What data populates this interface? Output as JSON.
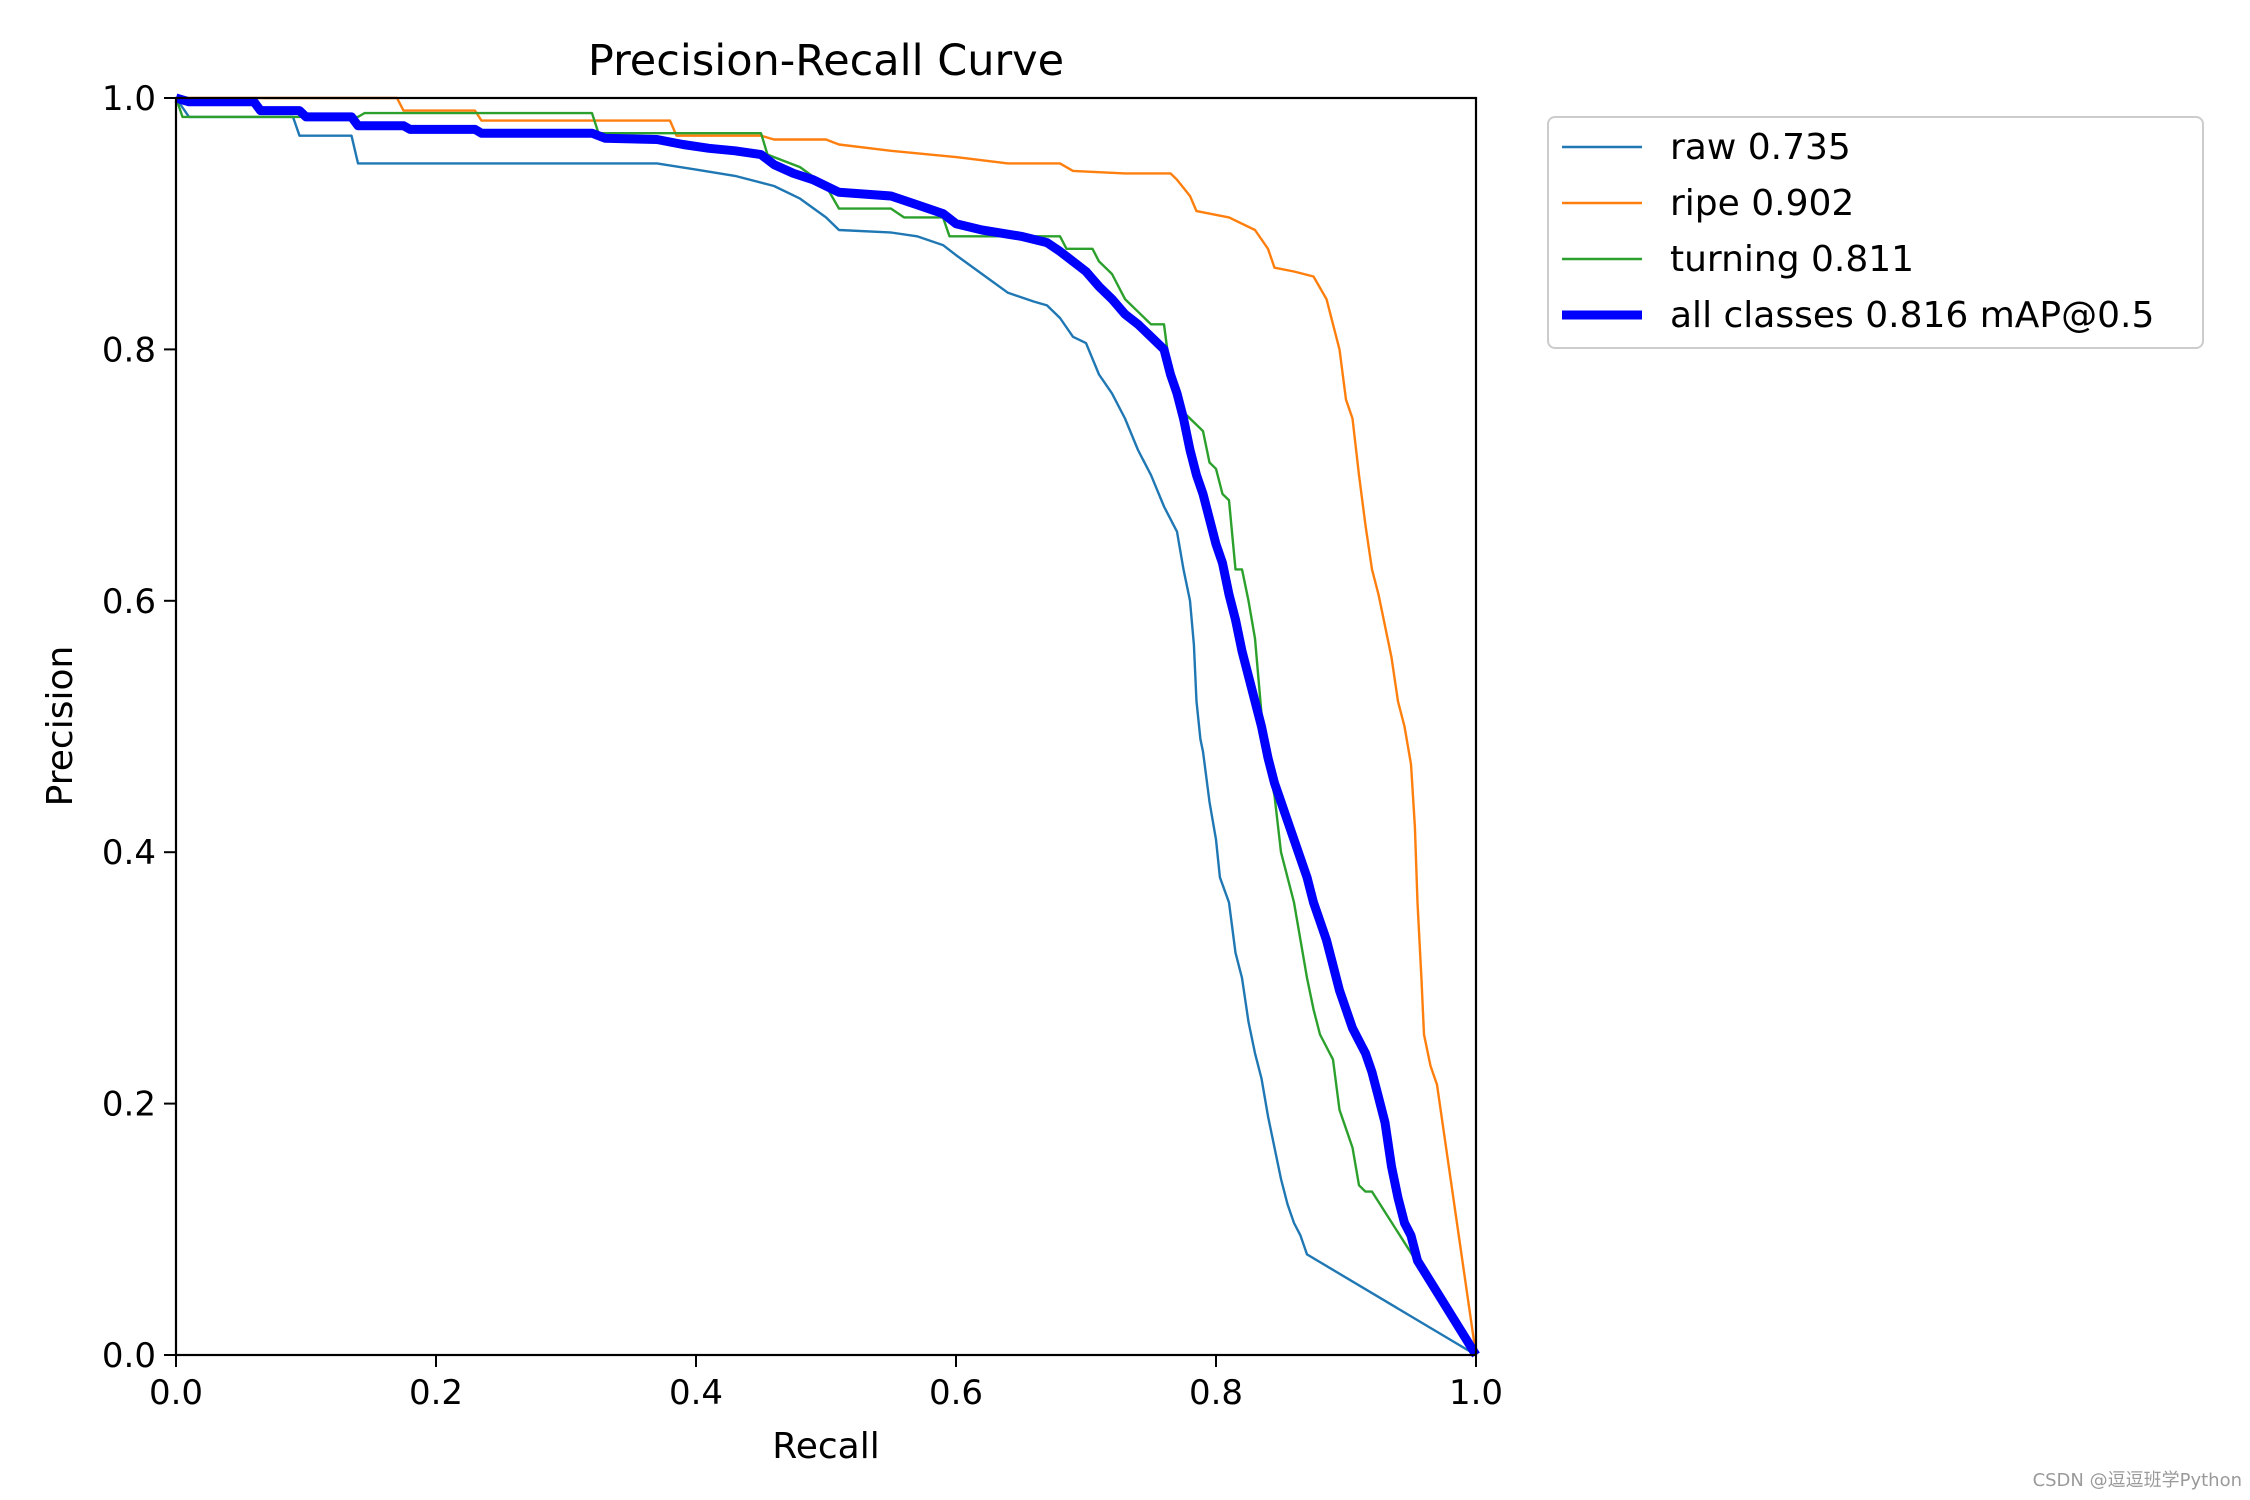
{
  "watermark": "CSDN @逗逗班学Python",
  "chart_data": {
    "type": "line",
    "title": "Precision-Recall Curve",
    "xlabel": "Recall",
    "ylabel": "Precision",
    "xlim": [
      0,
      1
    ],
    "ylim": [
      0,
      1
    ],
    "xticks": [
      "0.0",
      "0.2",
      "0.4",
      "0.6",
      "0.8",
      "1.0"
    ],
    "yticks": [
      "0.0",
      "0.2",
      "0.4",
      "0.6",
      "0.8",
      "1.0"
    ],
    "grid": false,
    "legend_position": "outside-top-right",
    "series": [
      {
        "name": "raw 0.735",
        "color": "#1f77b4",
        "linewidth": "thin",
        "points": [
          [
            0,
            1.0
          ],
          [
            0.01,
            0.985
          ],
          [
            0.09,
            0.985
          ],
          [
            0.095,
            0.97
          ],
          [
            0.135,
            0.97
          ],
          [
            0.14,
            0.948
          ],
          [
            0.37,
            0.948
          ],
          [
            0.4,
            0.943
          ],
          [
            0.43,
            0.938
          ],
          [
            0.46,
            0.93
          ],
          [
            0.48,
            0.92
          ],
          [
            0.5,
            0.905
          ],
          [
            0.51,
            0.895
          ],
          [
            0.55,
            0.893
          ],
          [
            0.57,
            0.89
          ],
          [
            0.59,
            0.883
          ],
          [
            0.6,
            0.875
          ],
          [
            0.62,
            0.86
          ],
          [
            0.64,
            0.845
          ],
          [
            0.66,
            0.838
          ],
          [
            0.67,
            0.835
          ],
          [
            0.68,
            0.825
          ],
          [
            0.69,
            0.81
          ],
          [
            0.7,
            0.805
          ],
          [
            0.71,
            0.78
          ],
          [
            0.72,
            0.765
          ],
          [
            0.73,
            0.745
          ],
          [
            0.74,
            0.72
          ],
          [
            0.75,
            0.7
          ],
          [
            0.76,
            0.675
          ],
          [
            0.77,
            0.655
          ],
          [
            0.775,
            0.625
          ],
          [
            0.78,
            0.6
          ],
          [
            0.783,
            0.565
          ],
          [
            0.785,
            0.52
          ],
          [
            0.788,
            0.49
          ],
          [
            0.79,
            0.48
          ],
          [
            0.795,
            0.44
          ],
          [
            0.8,
            0.41
          ],
          [
            0.803,
            0.38
          ],
          [
            0.81,
            0.36
          ],
          [
            0.815,
            0.32
          ],
          [
            0.82,
            0.3
          ],
          [
            0.825,
            0.265
          ],
          [
            0.83,
            0.24
          ],
          [
            0.835,
            0.22
          ],
          [
            0.84,
            0.19
          ],
          [
            0.845,
            0.165
          ],
          [
            0.85,
            0.14
          ],
          [
            0.855,
            0.12
          ],
          [
            0.86,
            0.105
          ],
          [
            0.865,
            0.095
          ],
          [
            0.87,
            0.08
          ],
          [
            1.0,
            0.0
          ]
        ]
      },
      {
        "name": "ripe 0.902",
        "color": "#ff7f0e",
        "linewidth": "thin",
        "points": [
          [
            0,
            1.0
          ],
          [
            0.17,
            1.0
          ],
          [
            0.175,
            0.99
          ],
          [
            0.23,
            0.99
          ],
          [
            0.235,
            0.982
          ],
          [
            0.38,
            0.982
          ],
          [
            0.385,
            0.97
          ],
          [
            0.45,
            0.97
          ],
          [
            0.46,
            0.967
          ],
          [
            0.5,
            0.967
          ],
          [
            0.51,
            0.963
          ],
          [
            0.55,
            0.958
          ],
          [
            0.6,
            0.953
          ],
          [
            0.64,
            0.948
          ],
          [
            0.68,
            0.948
          ],
          [
            0.69,
            0.942
          ],
          [
            0.73,
            0.94
          ],
          [
            0.765,
            0.94
          ],
          [
            0.77,
            0.935
          ],
          [
            0.78,
            0.922
          ],
          [
            0.785,
            0.91
          ],
          [
            0.81,
            0.905
          ],
          [
            0.83,
            0.895
          ],
          [
            0.84,
            0.88
          ],
          [
            0.845,
            0.865
          ],
          [
            0.86,
            0.862
          ],
          [
            0.875,
            0.858
          ],
          [
            0.885,
            0.84
          ],
          [
            0.89,
            0.82
          ],
          [
            0.895,
            0.8
          ],
          [
            0.9,
            0.76
          ],
          [
            0.905,
            0.745
          ],
          [
            0.91,
            0.7
          ],
          [
            0.915,
            0.66
          ],
          [
            0.92,
            0.625
          ],
          [
            0.925,
            0.605
          ],
          [
            0.93,
            0.58
          ],
          [
            0.935,
            0.555
          ],
          [
            0.94,
            0.52
          ],
          [
            0.945,
            0.5
          ],
          [
            0.95,
            0.47
          ],
          [
            0.953,
            0.42
          ],
          [
            0.955,
            0.36
          ],
          [
            0.958,
            0.3
          ],
          [
            0.96,
            0.255
          ],
          [
            0.965,
            0.23
          ],
          [
            0.97,
            0.215
          ],
          [
            1.0,
            0.0
          ]
        ]
      },
      {
        "name": "turning 0.811",
        "color": "#2ca02c",
        "linewidth": "thin",
        "points": [
          [
            0,
            1.0
          ],
          [
            0.005,
            0.985
          ],
          [
            0.14,
            0.985
          ],
          [
            0.145,
            0.988
          ],
          [
            0.32,
            0.988
          ],
          [
            0.325,
            0.972
          ],
          [
            0.45,
            0.972
          ],
          [
            0.455,
            0.955
          ],
          [
            0.48,
            0.945
          ],
          [
            0.5,
            0.93
          ],
          [
            0.51,
            0.912
          ],
          [
            0.55,
            0.912
          ],
          [
            0.56,
            0.905
          ],
          [
            0.59,
            0.905
          ],
          [
            0.595,
            0.89
          ],
          [
            0.68,
            0.89
          ],
          [
            0.685,
            0.88
          ],
          [
            0.705,
            0.88
          ],
          [
            0.71,
            0.87
          ],
          [
            0.72,
            0.86
          ],
          [
            0.73,
            0.84
          ],
          [
            0.74,
            0.83
          ],
          [
            0.75,
            0.82
          ],
          [
            0.76,
            0.82
          ],
          [
            0.765,
            0.78
          ],
          [
            0.775,
            0.75
          ],
          [
            0.785,
            0.74
          ],
          [
            0.79,
            0.735
          ],
          [
            0.795,
            0.71
          ],
          [
            0.8,
            0.705
          ],
          [
            0.805,
            0.685
          ],
          [
            0.81,
            0.68
          ],
          [
            0.815,
            0.625
          ],
          [
            0.82,
            0.625
          ],
          [
            0.825,
            0.6
          ],
          [
            0.83,
            0.57
          ],
          [
            0.835,
            0.51
          ],
          [
            0.84,
            0.47
          ],
          [
            0.845,
            0.445
          ],
          [
            0.85,
            0.4
          ],
          [
            0.855,
            0.38
          ],
          [
            0.86,
            0.36
          ],
          [
            0.865,
            0.33
          ],
          [
            0.87,
            0.3
          ],
          [
            0.875,
            0.275
          ],
          [
            0.88,
            0.255
          ],
          [
            0.885,
            0.245
          ],
          [
            0.89,
            0.235
          ],
          [
            0.895,
            0.195
          ],
          [
            0.9,
            0.18
          ],
          [
            0.905,
            0.165
          ],
          [
            0.91,
            0.135
          ],
          [
            0.915,
            0.13
          ],
          [
            0.92,
            0.13
          ],
          [
            1.0,
            0.0
          ]
        ]
      },
      {
        "name": "all classes 0.816 mAP@0.5",
        "color": "#0000ff",
        "linewidth": "thick",
        "points": [
          [
            0,
            1.0
          ],
          [
            0.01,
            0.997
          ],
          [
            0.06,
            0.997
          ],
          [
            0.065,
            0.99
          ],
          [
            0.095,
            0.99
          ],
          [
            0.1,
            0.985
          ],
          [
            0.135,
            0.985
          ],
          [
            0.14,
            0.978
          ],
          [
            0.175,
            0.978
          ],
          [
            0.18,
            0.975
          ],
          [
            0.23,
            0.975
          ],
          [
            0.235,
            0.972
          ],
          [
            0.32,
            0.972
          ],
          [
            0.33,
            0.968
          ],
          [
            0.37,
            0.967
          ],
          [
            0.39,
            0.963
          ],
          [
            0.41,
            0.96
          ],
          [
            0.43,
            0.958
          ],
          [
            0.45,
            0.955
          ],
          [
            0.46,
            0.947
          ],
          [
            0.475,
            0.94
          ],
          [
            0.49,
            0.935
          ],
          [
            0.51,
            0.925
          ],
          [
            0.55,
            0.922
          ],
          [
            0.57,
            0.915
          ],
          [
            0.59,
            0.908
          ],
          [
            0.6,
            0.9
          ],
          [
            0.62,
            0.895
          ],
          [
            0.65,
            0.89
          ],
          [
            0.67,
            0.885
          ],
          [
            0.68,
            0.878
          ],
          [
            0.69,
            0.87
          ],
          [
            0.7,
            0.862
          ],
          [
            0.71,
            0.85
          ],
          [
            0.72,
            0.84
          ],
          [
            0.73,
            0.828
          ],
          [
            0.74,
            0.82
          ],
          [
            0.75,
            0.81
          ],
          [
            0.76,
            0.8
          ],
          [
            0.765,
            0.78
          ],
          [
            0.77,
            0.765
          ],
          [
            0.775,
            0.745
          ],
          [
            0.78,
            0.72
          ],
          [
            0.785,
            0.7
          ],
          [
            0.79,
            0.685
          ],
          [
            0.795,
            0.665
          ],
          [
            0.8,
            0.645
          ],
          [
            0.805,
            0.63
          ],
          [
            0.81,
            0.605
          ],
          [
            0.815,
            0.585
          ],
          [
            0.82,
            0.56
          ],
          [
            0.825,
            0.54
          ],
          [
            0.83,
            0.52
          ],
          [
            0.835,
            0.5
          ],
          [
            0.84,
            0.475
          ],
          [
            0.845,
            0.455
          ],
          [
            0.85,
            0.44
          ],
          [
            0.855,
            0.425
          ],
          [
            0.86,
            0.41
          ],
          [
            0.865,
            0.395
          ],
          [
            0.87,
            0.38
          ],
          [
            0.875,
            0.36
          ],
          [
            0.88,
            0.345
          ],
          [
            0.885,
            0.33
          ],
          [
            0.89,
            0.31
          ],
          [
            0.895,
            0.29
          ],
          [
            0.9,
            0.275
          ],
          [
            0.905,
            0.26
          ],
          [
            0.91,
            0.25
          ],
          [
            0.915,
            0.24
          ],
          [
            0.92,
            0.225
          ],
          [
            0.925,
            0.205
          ],
          [
            0.93,
            0.185
          ],
          [
            0.935,
            0.15
          ],
          [
            0.94,
            0.125
          ],
          [
            0.945,
            0.105
          ],
          [
            0.95,
            0.095
          ],
          [
            0.955,
            0.075
          ],
          [
            1.0,
            0.0
          ]
        ]
      }
    ]
  }
}
